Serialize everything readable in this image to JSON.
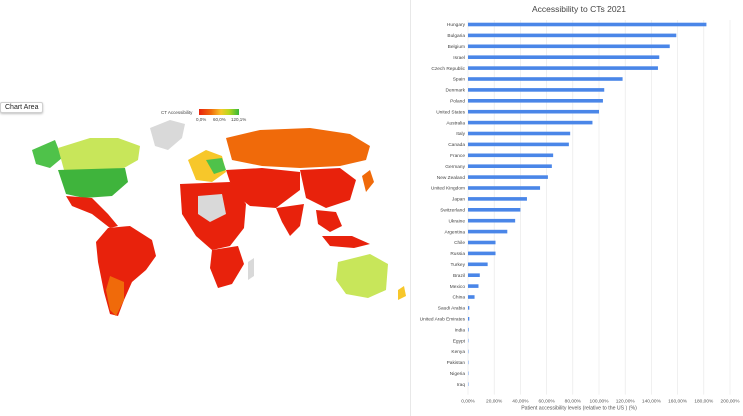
{
  "map": {
    "chart_area_label": "Chart Area",
    "legend": {
      "title": "CT Accessibility",
      "ticks": [
        "0,0%",
        "60,0%",
        "120,1%"
      ],
      "colors": [
        "#e8220c",
        "#f06a0a",
        "#f7c72a",
        "#b8d81c",
        "#37b83c"
      ]
    }
  },
  "chart_data": {
    "type": "bar",
    "orientation": "horizontal",
    "title": "Accessibility to CTs 2021",
    "xlabel": "Patient accessibility levels (relative to the US ) (%)",
    "ylabel": "",
    "xlim": [
      0,
      200
    ],
    "xticks": [
      "0,00%",
      "20,00%",
      "40,00%",
      "60,00%",
      "80,00%",
      "100,00%",
      "120,00%",
      "140,00%",
      "160,00%",
      "180,00%",
      "200,00%"
    ],
    "bar_color": "#4a86e8",
    "grid": true,
    "categories": [
      "Hungary",
      "Bulgaria",
      "Belgium",
      "Israel",
      "Czech Republic",
      "Spain",
      "Denmark",
      "Poland",
      "United States",
      "Australia",
      "Italy",
      "Canada",
      "France",
      "Germany",
      "New Zealand",
      "United Kingdom",
      "Japan",
      "Switzerland",
      "Ukraine",
      "Argentina",
      "Chile",
      "Russia",
      "Turkey",
      "Brazil",
      "Mexico",
      "China",
      "Saudi Arabia",
      "United Arab Emirates",
      "India",
      "Egypt",
      "Kenya",
      "Pakistan",
      "Nigeria",
      "Iraq"
    ],
    "values": [
      182,
      159,
      154,
      146,
      145,
      118,
      104,
      103,
      100,
      95,
      78,
      77,
      65,
      64,
      61,
      55,
      45,
      40,
      36,
      30,
      21,
      21,
      15,
      9,
      8,
      5,
      1,
      1,
      0.5,
      0.3,
      0.3,
      0.2,
      0.1,
      0.1
    ]
  }
}
